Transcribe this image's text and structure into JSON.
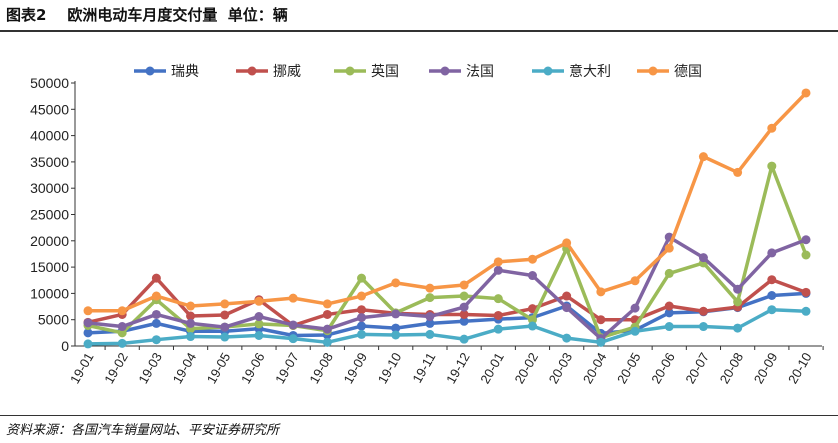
{
  "header": {
    "title": "图表2    欧洲电动车月度交付量  单位：辆"
  },
  "footer": {
    "source": "资料来源：各国汽车销量网站、平安证券研究所"
  },
  "chart_data": {
    "type": "line",
    "title": "",
    "xlabel": "",
    "ylabel": "",
    "ylim": [
      0,
      50000
    ],
    "yticks": [
      0,
      5000,
      10000,
      15000,
      20000,
      25000,
      30000,
      35000,
      40000,
      45000,
      50000
    ],
    "grid": false,
    "legend": "top",
    "categories": [
      "19-01",
      "19-02",
      "19-03",
      "19-04",
      "19-05",
      "19-06",
      "19-07",
      "19-08",
      "19-09",
      "19-10",
      "19-11",
      "19-12",
      "20-01",
      "20-02",
      "20-03",
      "20-04",
      "20-05",
      "20-06",
      "20-07",
      "20-08",
      "20-09",
      "20-10"
    ],
    "series": [
      {
        "name": "瑞典",
        "color": "#4472c4",
        "values": [
          2500,
          2800,
          4300,
          2800,
          2800,
          3300,
          2000,
          2100,
          3800,
          3400,
          4300,
          4700,
          5100,
          5400,
          7600,
          2400,
          3000,
          6300,
          6500,
          7300,
          9600,
          10000
        ]
      },
      {
        "name": "挪威",
        "color": "#c0504d",
        "values": [
          4500,
          6000,
          12900,
          5700,
          5900,
          8800,
          3900,
          6000,
          6900,
          6200,
          6000,
          6000,
          5800,
          7100,
          9500,
          5000,
          5000,
          7600,
          6600,
          7400,
          12600,
          10200
        ]
      },
      {
        "name": "英国",
        "color": "#9bbb59",
        "values": [
          3900,
          2500,
          8800,
          3300,
          3600,
          4200,
          3900,
          2900,
          12900,
          6300,
          9200,
          9500,
          9000,
          5000,
          18500,
          1600,
          3600,
          13800,
          15800,
          8400,
          34200,
          17300
        ]
      },
      {
        "name": "法国",
        "color": "#8064a2",
        "values": [
          4400,
          3700,
          6000,
          4300,
          3600,
          5600,
          4000,
          3200,
          5400,
          6100,
          5600,
          7400,
          14400,
          13400,
          7300,
          1400,
          7200,
          20700,
          16800,
          10800,
          17700,
          20200
        ]
      },
      {
        "name": "意大利",
        "color": "#4bacc6",
        "values": [
          400,
          500,
          1200,
          1800,
          1700,
          2000,
          1400,
          700,
          2200,
          2100,
          2200,
          1300,
          3200,
          3800,
          1500,
          700,
          2800,
          3700,
          3700,
          3400,
          6900,
          6600
        ]
      },
      {
        "name": "德国",
        "color": "#f79646",
        "values": [
          6700,
          6700,
          9500,
          7600,
          8000,
          8500,
          9100,
          8000,
          9500,
          12000,
          11000,
          11600,
          16000,
          16500,
          19600,
          10300,
          12400,
          18600,
          36000,
          33000,
          41400,
          48100
        ]
      }
    ]
  }
}
